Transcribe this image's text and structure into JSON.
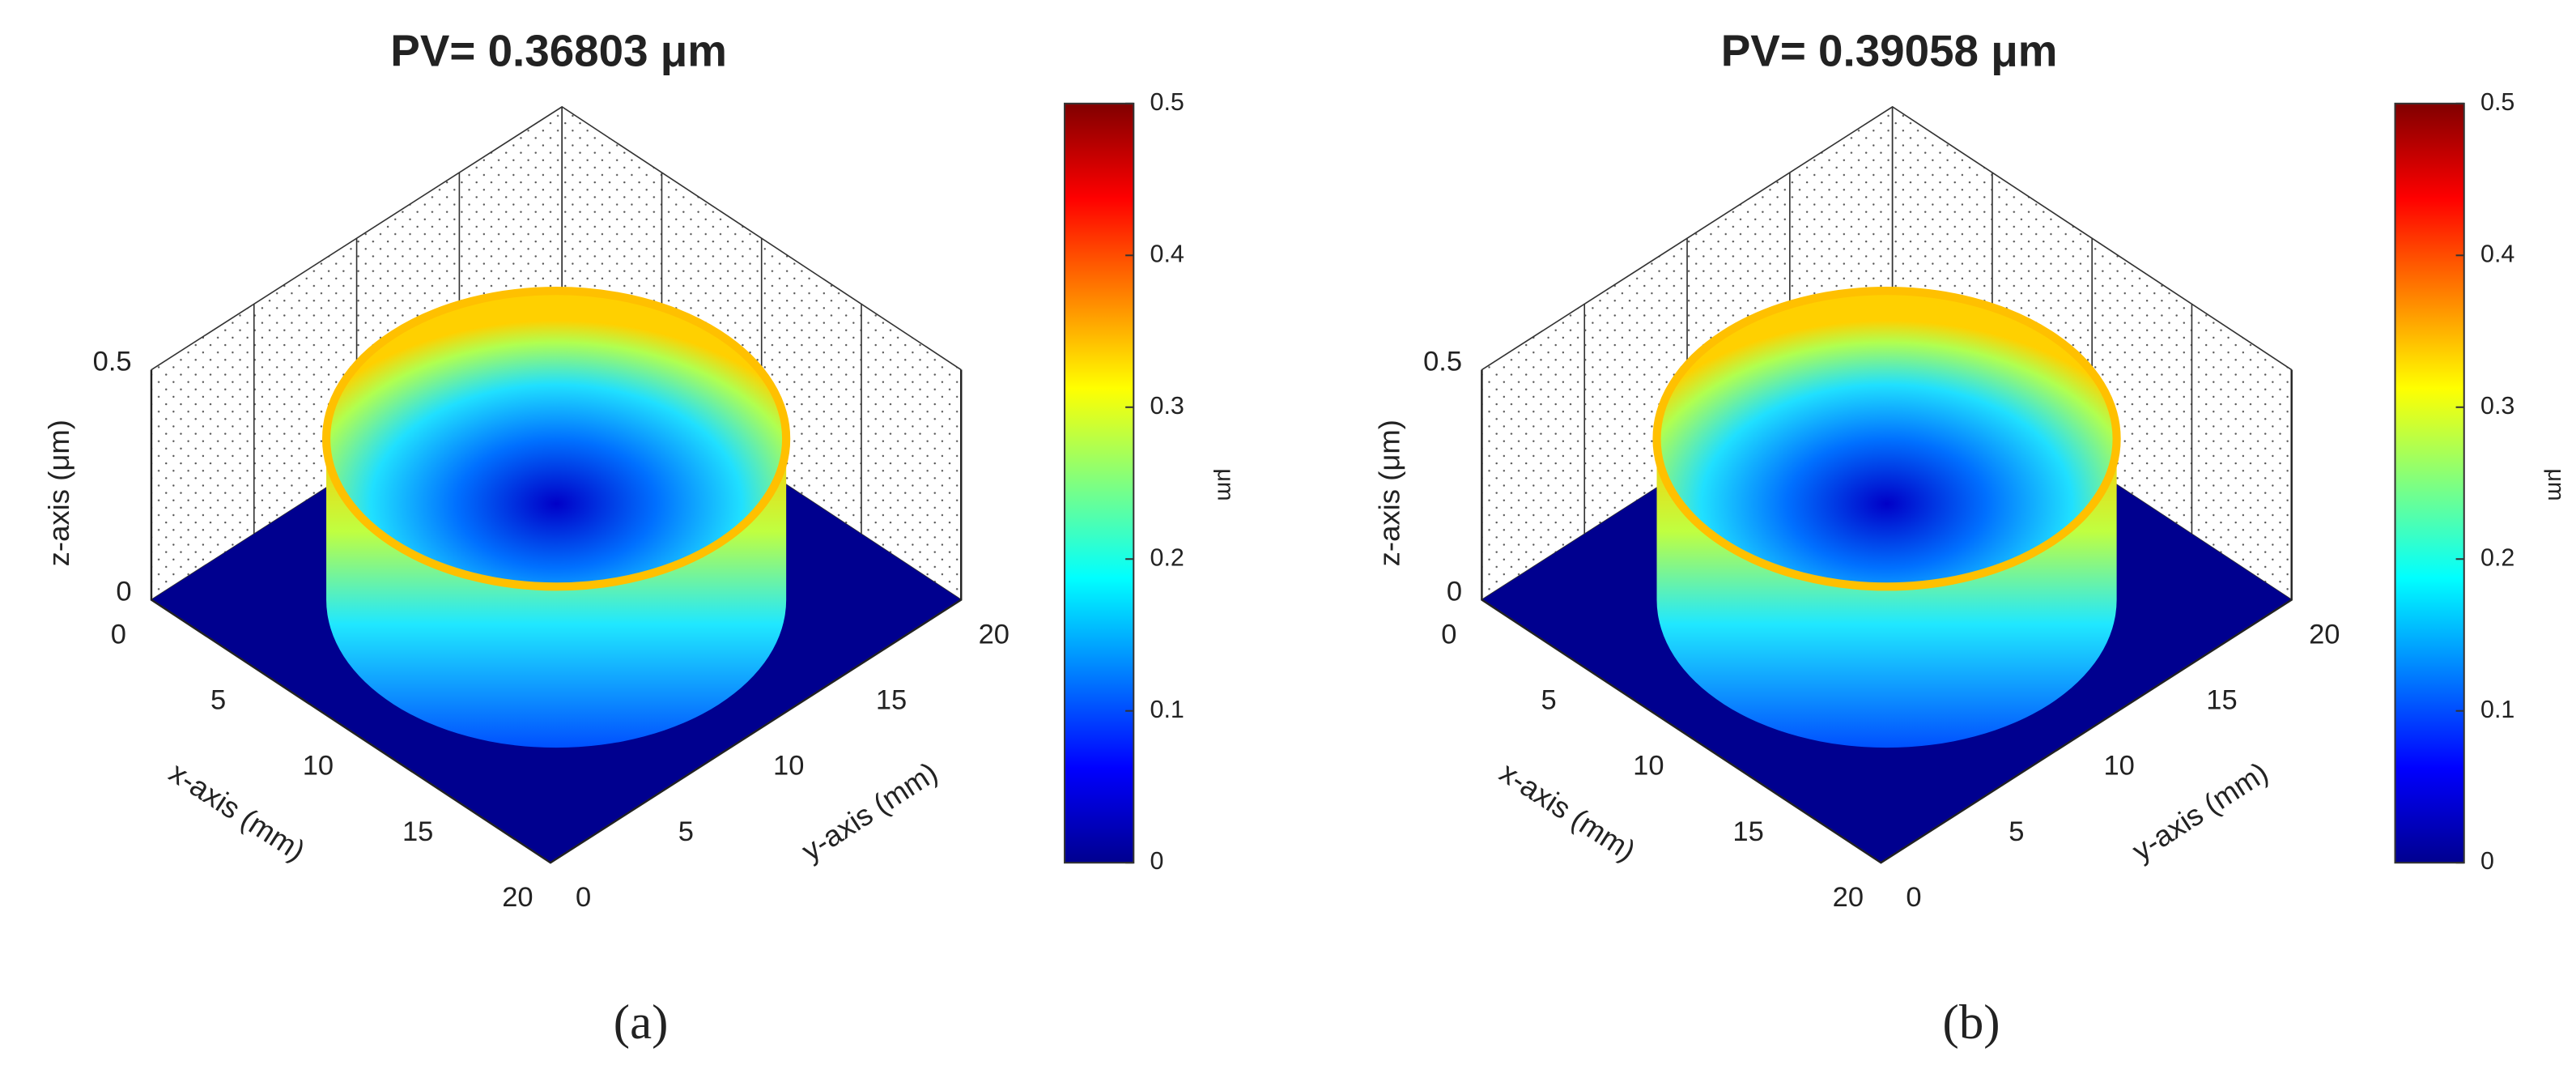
{
  "chart_data": [
    {
      "type": "surface3d",
      "title": "PV= 0.36803 μm",
      "caption": "(a)",
      "xlabel": "x-axis (mm)",
      "ylabel": "y-axis (mm)",
      "zlabel": "z-axis (μm)",
      "xlim": [
        0,
        20
      ],
      "xticks": [
        0,
        5,
        10,
        15,
        20
      ],
      "ylim": [
        0,
        20
      ],
      "yticks": [
        0,
        5,
        10,
        15,
        20
      ],
      "zlim": [
        0,
        0.5
      ],
      "zticks": [
        0,
        0.5
      ],
      "grid": true,
      "colormap": "jet",
      "colorbar": {
        "label": "μm",
        "lim": [
          0,
          0.5
        ],
        "ticks": [
          0,
          0.1,
          0.2,
          0.3,
          0.4,
          0.5
        ]
      }
    },
    {
      "type": "surface3d",
      "title": "PV= 0.39058 μm",
      "caption": "(b)",
      "xlabel": "x-axis (mm)",
      "ylabel": "y-axis (mm)",
      "zlabel": "z-axis (μm)",
      "xlim": [
        0,
        20
      ],
      "xticks": [
        0,
        5,
        10,
        15,
        20
      ],
      "ylim": [
        0,
        20
      ],
      "yticks": [
        0,
        5,
        10,
        15,
        20
      ],
      "zlim": [
        0,
        0.5
      ],
      "zticks": [
        0,
        0.5
      ],
      "grid": true,
      "colormap": "jet",
      "colorbar": {
        "label": "μm",
        "lim": [
          0,
          0.5
        ],
        "ticks": [
          0,
          0.1,
          0.2,
          0.3,
          0.4,
          0.5
        ]
      }
    }
  ]
}
